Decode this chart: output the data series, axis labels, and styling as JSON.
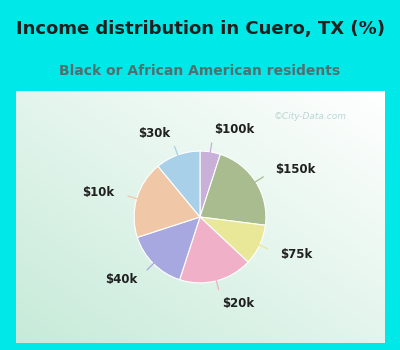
{
  "title": "Income distribution in Cuero, TX (%)",
  "subtitle": "Black or African American residents",
  "watermark": "©City-Data.com",
  "segments": [
    {
      "label": "$100k",
      "value": 5,
      "color": "#c8b0d8"
    },
    {
      "label": "$150k",
      "value": 22,
      "color": "#a8bc90"
    },
    {
      "label": "$75k",
      "value": 10,
      "color": "#e8e898"
    },
    {
      "label": "$20k",
      "value": 18,
      "color": "#f0b0c8"
    },
    {
      "label": "$40k",
      "value": 15,
      "color": "#a8a8e0"
    },
    {
      "label": "$10k",
      "value": 19,
      "color": "#f0c8a8"
    },
    {
      "label": "$30k",
      "value": 11,
      "color": "#a8d0e8"
    }
  ],
  "bg_cyan": "#00e8e8",
  "bg_panel_tl": "#c8e8d8",
  "bg_panel_br": "#f0f8f8",
  "title_color": "#202020",
  "subtitle_color": "#507070",
  "label_color": "#202020",
  "watermark_color": "#a8c8c8",
  "title_fontsize": 13,
  "subtitle_fontsize": 10,
  "label_fontsize": 8.5
}
